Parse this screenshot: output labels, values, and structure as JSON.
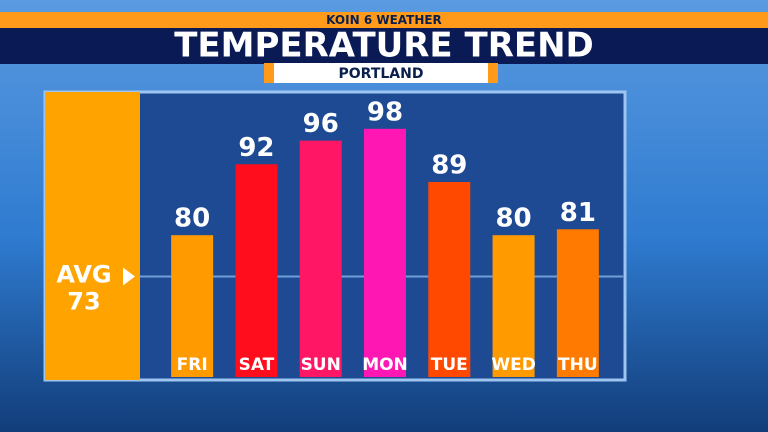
{
  "chart_data": {
    "type": "bar",
    "header": "KOIN 6 WEATHER",
    "title": "TEMPERATURE TREND",
    "subtitle": "PORTLAND",
    "categories": [
      "FRI",
      "SAT",
      "SUN",
      "MON",
      "TUE",
      "WED",
      "THU"
    ],
    "values": [
      80,
      92,
      96,
      98,
      89,
      80,
      81
    ],
    "colors": [
      "#ff9a00",
      "#ff0d1c",
      "#ff1766",
      "#ff17b4",
      "#ff4800",
      "#ff9a00",
      "#ff7a00"
    ],
    "average": {
      "label": "AVG",
      "value": 73
    },
    "ylim": [
      56,
      100
    ]
  }
}
